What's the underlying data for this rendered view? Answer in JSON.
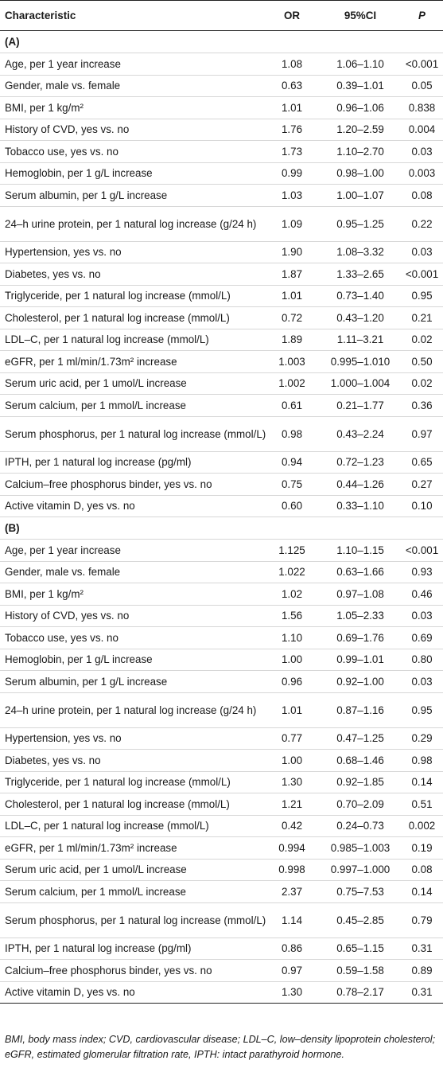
{
  "header": {
    "characteristic": "Characteristic",
    "or": "OR",
    "ci": "95%CI",
    "p": "P"
  },
  "sections": [
    {
      "label": "(A)",
      "rows": [
        {
          "characteristic": "Age, per 1 year increase",
          "or": "1.08",
          "ci": "1.06–1.10",
          "p": "<0.001"
        },
        {
          "characteristic": "Gender, male vs. female",
          "or": "0.63",
          "ci": "0.39–1.01",
          "p": "0.05"
        },
        {
          "characteristic": "BMI, per 1 kg/m²",
          "or": "1.01",
          "ci": "0.96–1.06",
          "p": "0.838"
        },
        {
          "characteristic": "History of CVD, yes vs. no",
          "or": "1.76",
          "ci": "1.20–2.59",
          "p": "0.004"
        },
        {
          "characteristic": "Tobacco use, yes vs. no",
          "or": "1.73",
          "ci": "1.10–2.70",
          "p": "0.03"
        },
        {
          "characteristic": "Hemoglobin, per 1 g/L increase",
          "or": "0.99",
          "ci": "0.98–1.00",
          "p": "0.003"
        },
        {
          "characteristic": "Serum albumin, per 1 g/L increase",
          "or": "1.03",
          "ci": "1.00–1.07",
          "p": "0.08"
        },
        {
          "characteristic": "24–h urine protein, per 1 natural log increase (g/24 h)",
          "or": "1.09",
          "ci": "0.95–1.25",
          "p": "0.22"
        },
        {
          "characteristic": "Hypertension, yes vs. no",
          "or": "1.90",
          "ci": "1.08–3.32",
          "p": "0.03"
        },
        {
          "characteristic": "Diabetes, yes vs. no",
          "or": "1.87",
          "ci": "1.33–2.65",
          "p": "<0.001"
        },
        {
          "characteristic": "Triglyceride, per 1 natural log increase (mmol/L)",
          "or": "1.01",
          "ci": "0.73–1.40",
          "p": "0.95"
        },
        {
          "characteristic": "Cholesterol, per 1 natural log increase (mmol/L)",
          "or": "0.72",
          "ci": "0.43–1.20",
          "p": "0.21"
        },
        {
          "characteristic": "LDL–C, per 1 natural log increase (mmol/L)",
          "or": "1.89",
          "ci": "1.11–3.21",
          "p": "0.02"
        },
        {
          "characteristic": "eGFR, per 1 ml/min/1.73m² increase",
          "or": "1.003",
          "ci": "0.995–1.010",
          "p": "0.50"
        },
        {
          "characteristic": "Serum uric acid, per 1 umol/L increase",
          "or": "1.002",
          "ci": "1.000–1.004",
          "p": "0.02"
        },
        {
          "characteristic": "Serum calcium, per 1 mmol/L increase",
          "or": "0.61",
          "ci": "0.21–1.77",
          "p": "0.36"
        },
        {
          "characteristic": "Serum phosphorus, per 1 natural log increase (mmol/L)",
          "or": "0.98",
          "ci": "0.43–2.24",
          "p": "0.97"
        },
        {
          "characteristic": "IPTH, per 1 natural log increase (pg/ml)",
          "or": "0.94",
          "ci": "0.72–1.23",
          "p": "0.65"
        },
        {
          "characteristic": "Calcium–free phosphorus binder, yes vs. no",
          "or": "0.75",
          "ci": "0.44–1.26",
          "p": "0.27"
        },
        {
          "characteristic": "Active vitamin D, yes vs. no",
          "or": "0.60",
          "ci": "0.33–1.10",
          "p": "0.10"
        }
      ]
    },
    {
      "label": "(B)",
      "rows": [
        {
          "characteristic": "Age, per 1 year increase",
          "or": "1.125",
          "ci": "1.10–1.15",
          "p": "<0.001"
        },
        {
          "characteristic": "Gender, male vs. female",
          "or": "1.022",
          "ci": "0.63–1.66",
          "p": "0.93"
        },
        {
          "characteristic": "BMI, per 1 kg/m²",
          "or": "1.02",
          "ci": "0.97–1.08",
          "p": "0.46"
        },
        {
          "characteristic": "History of CVD, yes vs. no",
          "or": "1.56",
          "ci": "1.05–2.33",
          "p": "0.03"
        },
        {
          "characteristic": "Tobacco use, yes vs. no",
          "or": "1.10",
          "ci": "0.69–1.76",
          "p": "0.69"
        },
        {
          "characteristic": "Hemoglobin, per 1 g/L increase",
          "or": "1.00",
          "ci": "0.99–1.01",
          "p": "0.80"
        },
        {
          "characteristic": "Serum albumin, per 1 g/L increase",
          "or": "0.96",
          "ci": "0.92–1.00",
          "p": "0.03"
        },
        {
          "characteristic": "24–h urine protein, per 1 natural log increase (g/24 h)",
          "or": "1.01",
          "ci": "0.87–1.16",
          "p": "0.95"
        },
        {
          "characteristic": "Hypertension, yes vs. no",
          "or": "0.77",
          "ci": "0.47–1.25",
          "p": "0.29"
        },
        {
          "characteristic": "Diabetes, yes vs. no",
          "or": "1.00",
          "ci": "0.68–1.46",
          "p": "0.98"
        },
        {
          "characteristic": "Triglyceride, per 1 natural log increase (mmol/L)",
          "or": "1.30",
          "ci": "0.92–1.85",
          "p": "0.14"
        },
        {
          "characteristic": "Cholesterol, per 1 natural log increase (mmol/L)",
          "or": "1.21",
          "ci": "0.70–2.09",
          "p": "0.51"
        },
        {
          "characteristic": "LDL–C, per 1 natural log increase (mmol/L)",
          "or": "0.42",
          "ci": "0.24–0.73",
          "p": "0.002"
        },
        {
          "characteristic": "eGFR, per 1 ml/min/1.73m² increase",
          "or": "0.994",
          "ci": "0.985–1.003",
          "p": "0.19"
        },
        {
          "characteristic": "Serum uric acid, per 1 umol/L increase",
          "or": "0.998",
          "ci": "0.997–1.000",
          "p": "0.08"
        },
        {
          "characteristic": "Serum calcium, per 1 mmol/L increase",
          "or": "2.37",
          "ci": "0.75–7.53",
          "p": "0.14"
        },
        {
          "characteristic": "Serum phosphorus, per 1 natural log increase (mmol/L)",
          "or": "1.14",
          "ci": "0.45–2.85",
          "p": "0.79"
        },
        {
          "characteristic": "IPTH, per 1 natural log increase (pg/ml)",
          "or": "0.86",
          "ci": "0.65–1.15",
          "p": "0.31"
        },
        {
          "characteristic": "Calcium–free phosphorus binder, yes vs. no",
          "or": "0.97",
          "ci": "0.59–1.58",
          "p": "0.89"
        },
        {
          "characteristic": "Active vitamin D, yes vs. no",
          "or": "1.30",
          "ci": "0.78–2.17",
          "p": "0.31"
        }
      ]
    }
  ],
  "footnote": "BMI, body mass index; CVD, cardiovascular disease; LDL–C, low–density lipoprotein cholesterol; eGFR, estimated glomerular filtration rate, IPTH: intact parathyroid hormone."
}
